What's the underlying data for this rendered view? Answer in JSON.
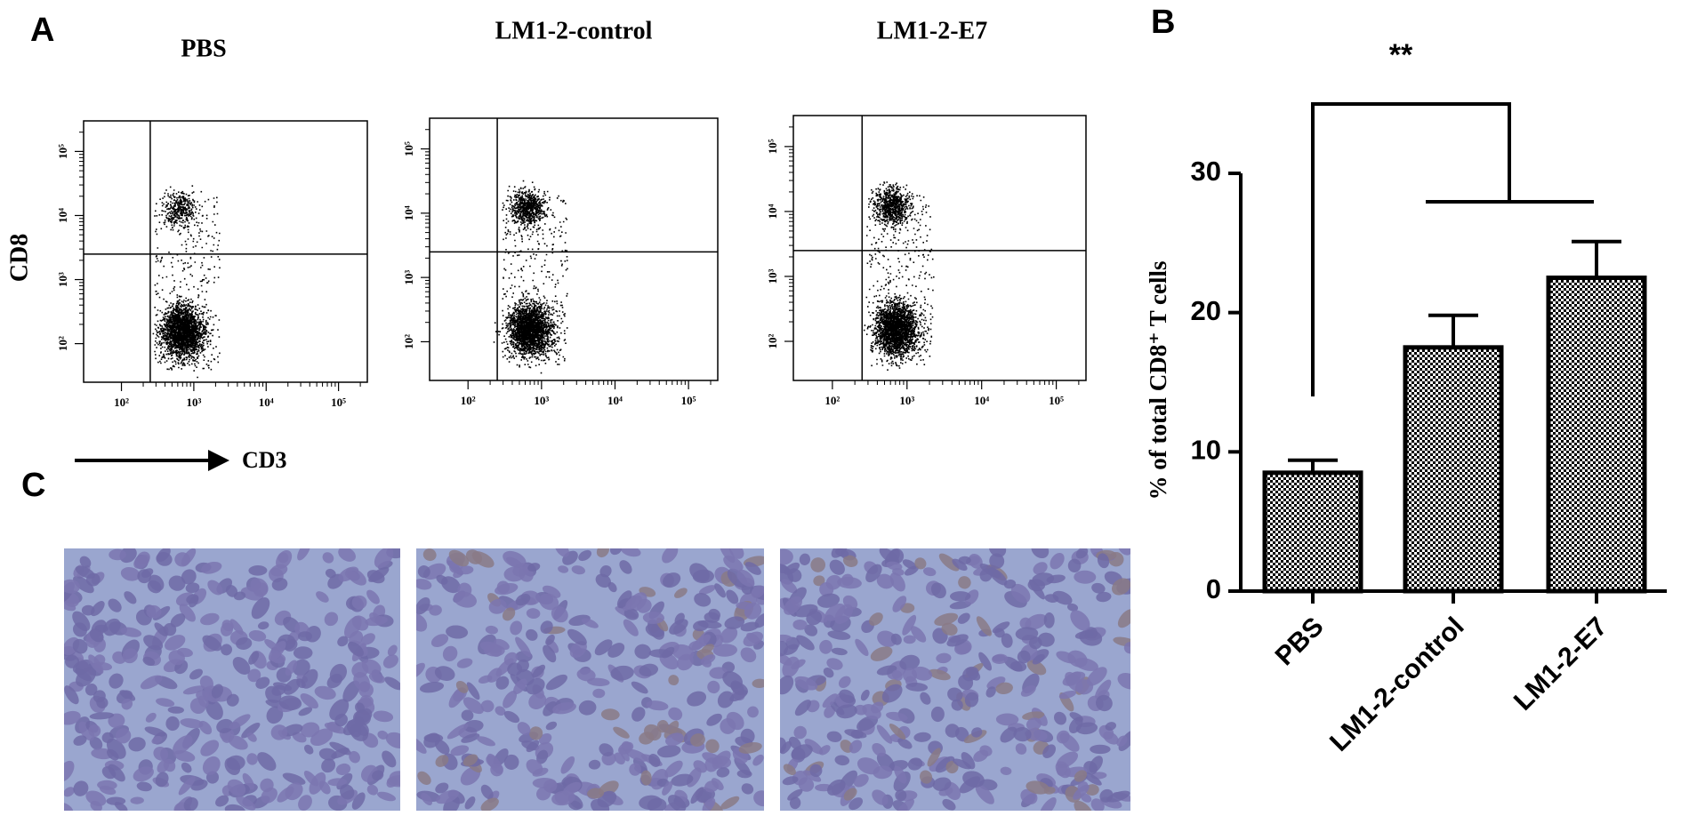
{
  "panel_labels": [
    "A",
    "B",
    "C"
  ],
  "chart_data": [
    {
      "type": "flow",
      "title": "PBS",
      "xlabel": "CD3",
      "ylabel": "CD8",
      "log_scale": true,
      "xlim": [
        30,
        250000
      ],
      "ylim": [
        25,
        300000
      ],
      "gate": [
        250,
        2500
      ],
      "xticks": [
        {
          "value": 100,
          "label": "10²"
        },
        {
          "value": 1000,
          "label": "10³"
        },
        {
          "value": 10000,
          "label": "10⁴"
        },
        {
          "value": 100000,
          "label": "10⁵"
        }
      ],
      "yticks": [
        {
          "value": 100,
          "label": "10²"
        },
        {
          "value": 1000,
          "label": "10³"
        },
        {
          "value": 10000,
          "label": "10⁴"
        },
        {
          "value": 100000,
          "label": "10⁵"
        }
      ]
    },
    {
      "type": "flow",
      "title": "LM1-2-control",
      "log_scale": true,
      "xlim": [
        30,
        250000
      ],
      "ylim": [
        25,
        300000
      ],
      "gate": [
        250,
        2500
      ],
      "xticks": [
        {
          "value": 100,
          "label": "10²"
        },
        {
          "value": 1000,
          "label": "10³"
        },
        {
          "value": 10000,
          "label": "10⁴"
        },
        {
          "value": 100000,
          "label": "10⁵"
        }
      ],
      "yticks": [
        {
          "value": 100,
          "label": "10²"
        },
        {
          "value": 1000,
          "label": "10³"
        },
        {
          "value": 10000,
          "label": "10⁴"
        },
        {
          "value": 100000,
          "label": "10⁵"
        }
      ]
    },
    {
      "type": "flow",
      "title": "LM1-2-E7",
      "log_scale": true,
      "xlim": [
        30,
        250000
      ],
      "ylim": [
        25,
        300000
      ],
      "gate": [
        250,
        2500
      ],
      "xticks": [
        {
          "value": 100,
          "label": "10²"
        },
        {
          "value": 1000,
          "label": "10³"
        },
        {
          "value": 10000,
          "label": "10⁴"
        },
        {
          "value": 100000,
          "label": "10⁵"
        }
      ],
      "yticks": [
        {
          "value": 100,
          "label": "10²"
        },
        {
          "value": 1000,
          "label": "10³"
        },
        {
          "value": 10000,
          "label": "10⁴"
        },
        {
          "value": 100000,
          "label": "10⁵"
        }
      ]
    },
    {
      "type": "bar",
      "ylabel": "% of total CD8⁺ T cells",
      "annotation": "**",
      "categories": [
        "PBS",
        "LM1-2-control",
        "LM1-2-E7"
      ],
      "values": [
        8.5,
        17.5,
        22.5
      ],
      "errors": [
        0.9,
        2.3,
        2.6
      ],
      "ylim": [
        0,
        30
      ],
      "yticks": [
        0,
        10,
        20,
        30
      ],
      "color": "#000000"
    }
  ]
}
